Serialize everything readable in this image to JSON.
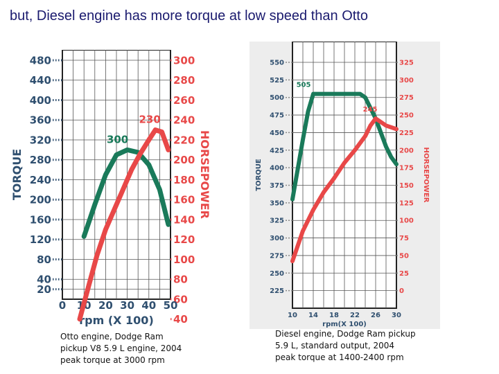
{
  "slide": {
    "title": "but, Diesel engine has more torque at low speed than Otto"
  },
  "captions": {
    "left": [
      "Otto engine, Dodge Ram",
      "pickup V8 5.9 L engine, 2004",
      "peak torque at 3000 rpm"
    ],
    "right": [
      "Diesel engine, Dodge Ram pickup",
      "5.9 L, standard output, 2004",
      "peak torque at 1400-2400 rpm"
    ]
  },
  "chart_data": [
    {
      "type": "line",
      "xlabel": "rpm (X 100)",
      "ylabel": "TORQUE",
      "y2label": "HORSEPOWER",
      "xlim": [
        0,
        50
      ],
      "x_ticks": [
        0,
        10,
        20,
        30,
        40,
        50
      ],
      "ylim": [
        0,
        480
      ],
      "y_ticks": [
        20,
        40,
        80,
        120,
        160,
        200,
        240,
        280,
        320,
        360,
        400,
        440,
        480
      ],
      "y2_ticks": [
        40,
        60,
        80,
        100,
        120,
        140,
        160,
        180,
        200,
        220,
        240,
        260,
        280,
        300
      ],
      "y2_note": "y2 value = 0.5 * torque-axis value + 60",
      "series": [
        {
          "name": "TORQUE",
          "axis": "y",
          "color": "#1a7a5a",
          "x": [
            10,
            15,
            20,
            25,
            30,
            35,
            40,
            45,
            49
          ],
          "y": [
            126,
            190,
            250,
            290,
            300,
            295,
            270,
            220,
            150
          ]
        },
        {
          "name": "HORSEPOWER",
          "axis": "y2",
          "color": "#e84848",
          "x": [
            8,
            12,
            16,
            20,
            24,
            28,
            32,
            36,
            40,
            43,
            46,
            49
          ],
          "y": [
            40,
            72,
            104,
            130,
            150,
            170,
            190,
            206,
            220,
            230,
            228,
            210
          ]
        }
      ],
      "annotations": [
        {
          "text": "300",
          "series": "TORQUE"
        },
        {
          "text": "230",
          "series": "HORSEPOWER"
        }
      ]
    },
    {
      "type": "line",
      "xlabel": "rpm(X 100)",
      "ylabel": "TORQUE",
      "y2label": "HORSEPOWER",
      "xlim": [
        10,
        30
      ],
      "x_ticks": [
        10,
        14,
        18,
        22,
        26,
        30
      ],
      "ylim": [
        225,
        550
      ],
      "y_ticks": [
        225,
        250,
        275,
        300,
        325,
        350,
        375,
        400,
        425,
        450,
        475,
        500,
        525,
        550
      ],
      "y2_ticks": [
        0,
        25,
        50,
        75,
        100,
        125,
        150,
        175,
        200,
        225,
        250,
        275,
        300,
        325
      ],
      "y2_note": "y2 value = torque-axis value - 225",
      "series": [
        {
          "name": "TORQUE",
          "axis": "y",
          "color": "#1a7a5a",
          "x": [
            10,
            12,
            13,
            14,
            16,
            18,
            20,
            22,
            23,
            24,
            25,
            26,
            27,
            28,
            29,
            30
          ],
          "y": [
            355,
            440,
            480,
            505,
            505,
            505,
            505,
            505,
            505,
            500,
            485,
            470,
            450,
            430,
            415,
            405
          ]
        },
        {
          "name": "HORSEPOWER",
          "axis": "y2",
          "color": "#e84848",
          "x": [
            10,
            12,
            14,
            16,
            18,
            20,
            22,
            24,
            25,
            26,
            27,
            28,
            30
          ],
          "y": [
            42,
            85,
            115,
            140,
            160,
            182,
            200,
            220,
            235,
            245,
            240,
            235,
            230
          ]
        }
      ],
      "annotations": [
        {
          "text": "505",
          "series": "TORQUE"
        },
        {
          "text": "245",
          "series": "HORSEPOWER"
        }
      ]
    }
  ]
}
